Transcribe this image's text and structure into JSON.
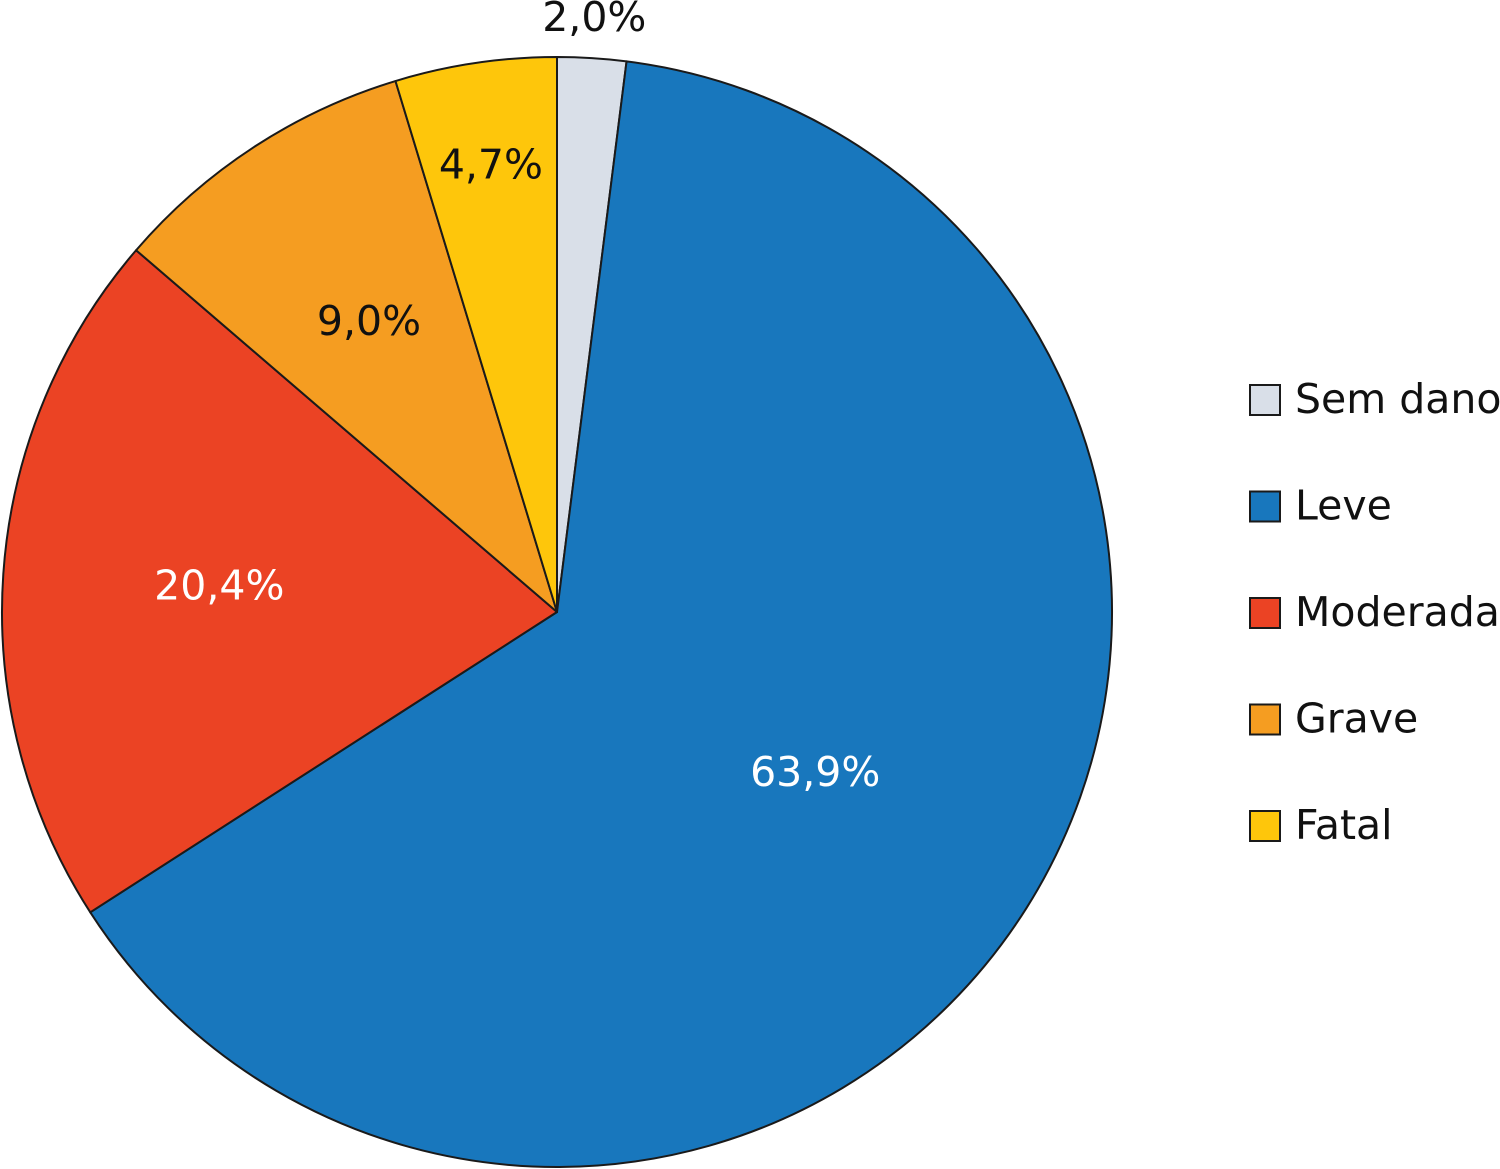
{
  "chart_data": {
    "type": "pie",
    "title": "",
    "start_angle_deg": 0,
    "direction": "clockwise",
    "legend_position": "right",
    "slices": [
      {
        "name": "Sem dano",
        "value": 2.0,
        "label": "2,0%",
        "color": "#d9dfe8",
        "label_color": "#111111"
      },
      {
        "name": "Leve",
        "value": 63.9,
        "label": "63,9%",
        "color": "#1877bd",
        "label_color": "#ffffff"
      },
      {
        "name": "Moderada",
        "value": 20.4,
        "label": "20,4%",
        "color": "#eb4324",
        "label_color": "#ffffff"
      },
      {
        "name": "Grave",
        "value": 9.0,
        "label": "9,0%",
        "color": "#f59d21",
        "label_color": "#111111"
      },
      {
        "name": "Fatal",
        "value": 4.7,
        "label": "4,7%",
        "color": "#fec60b",
        "label_color": "#111111"
      }
    ]
  }
}
